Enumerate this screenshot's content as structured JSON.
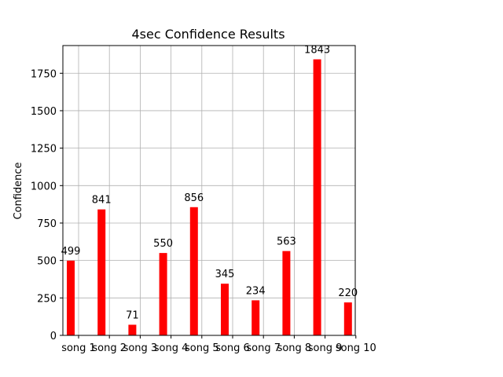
{
  "chart_data": {
    "type": "bar",
    "title": "4sec Confidence Results",
    "xlabel": "",
    "ylabel": "Confidence",
    "categories": [
      "song 1",
      "song 2",
      "song 3",
      "song 4",
      "song 5",
      "song 6",
      "song 7",
      "song 8",
      "song 9",
      "song 10"
    ],
    "values": [
      499,
      841,
      71,
      550,
      856,
      345,
      234,
      563,
      1843,
      220
    ],
    "data_labels": [
      "499",
      "841",
      "71",
      "550",
      "856",
      "345",
      "234",
      "563",
      "1843",
      "220"
    ],
    "yticks": [
      0,
      250,
      500,
      750,
      1000,
      1250,
      1500,
      1750
    ],
    "ylim": [
      0,
      1935
    ],
    "bar_color": "#ff0000",
    "grid": true
  }
}
